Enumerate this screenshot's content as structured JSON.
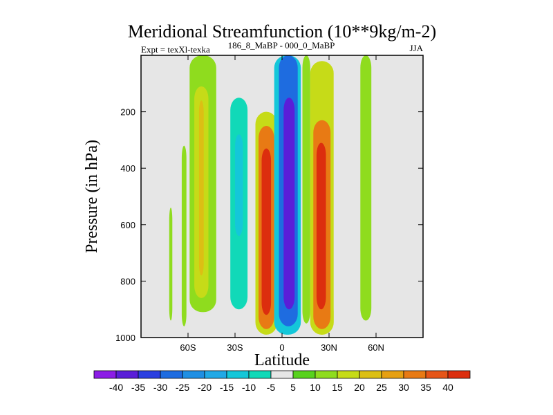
{
  "chart_data": {
    "type": "contour",
    "title": "Meridional Streamfunction (10**9kg/m-2)",
    "left_label": "Expt = texXl-texka",
    "center_label": "186_8_MaBP - 000_0_MaBP",
    "right_label": "JJA",
    "xlabel": "Latitude",
    "ylabel": "Pressure (in hPa)",
    "xlim": [
      -90,
      90
    ],
    "ylim": [
      1000,
      0
    ],
    "x_ticks": [
      {
        "value": -60,
        "label": "60S"
      },
      {
        "value": -30,
        "label": "30S"
      },
      {
        "value": 0,
        "label": "0"
      },
      {
        "value": 30,
        "label": "30N"
      },
      {
        "value": 60,
        "label": "60N"
      }
    ],
    "y_ticks": [
      {
        "value": 200,
        "label": "200"
      },
      {
        "value": 400,
        "label": "400"
      },
      {
        "value": 600,
        "label": "600"
      },
      {
        "value": 800,
        "label": "800"
      },
      {
        "value": 1000,
        "label": "1000"
      }
    ],
    "levels": [
      "-40",
      "-35",
      "-30",
      "-25",
      "-20",
      "-15",
      "-10",
      "-5",
      "5",
      "10",
      "15",
      "20",
      "25",
      "30",
      "35",
      "40"
    ],
    "colors": [
      "#8c1ce6",
      "#5a1ed8",
      "#2b3fe0",
      "#1e6ce0",
      "#1f8fe3",
      "#21a9e6",
      "#14c7d9",
      "#11d9b8",
      "#e6e6e6",
      "#58d21d",
      "#8fdc1e",
      "#c6db18",
      "#dcbf14",
      "#e6a012",
      "#e87a14",
      "#e65518",
      "#dc2e0e"
    ],
    "missing_color": "#e6e6e6",
    "features": [
      {
        "name": "band-60s-edge",
        "lat": [
          -72,
          -70
        ],
        "p": [
          540,
          940
        ],
        "level": 10
      },
      {
        "name": "band-60s-outer",
        "lat": [
          -64,
          -61
        ],
        "p": [
          320,
          960
        ],
        "level": 10
      },
      {
        "name": "band-45s",
        "lat": [
          -59,
          -42
        ],
        "p": [
          0,
          910
        ],
        "level": 10
      },
      {
        "name": "band-45s-core",
        "lat": [
          -56,
          -47
        ],
        "p": [
          110,
          860
        ],
        "level": 15
      },
      {
        "name": "band-45s-inner",
        "lat": [
          -53,
          -50
        ],
        "p": [
          160,
          780
        ],
        "level": 20
      },
      {
        "name": "cell-30s",
        "lat": [
          -38,
          -18
        ],
        "p": [
          0,
          960
        ],
        "level": -5
      },
      {
        "name": "cell-30s-core",
        "lat": [
          -33,
          -22
        ],
        "p": [
          150,
          900
        ],
        "level": -10
      },
      {
        "name": "cell-30s-inner",
        "lat": [
          -30,
          -25
        ],
        "p": [
          280,
          640
        ],
        "level": -15
      },
      {
        "name": "cell-15s",
        "lat": [
          -17,
          -3
        ],
        "p": [
          200,
          990
        ],
        "level": 15
      },
      {
        "name": "cell-15s-core",
        "lat": [
          -15,
          -5
        ],
        "p": [
          250,
          970
        ],
        "level": 30
      },
      {
        "name": "cell-15s-inner",
        "lat": [
          -13,
          -7
        ],
        "p": [
          330,
          920
        ],
        "level": 40
      },
      {
        "name": "cell-eq",
        "lat": [
          -5,
          12
        ],
        "p": [
          0,
          990
        ],
        "level": -15
      },
      {
        "name": "cell-eq-core",
        "lat": [
          -2,
          10
        ],
        "p": [
          0,
          960
        ],
        "level": -30
      },
      {
        "name": "cell-eq-inner",
        "lat": [
          1,
          8
        ],
        "p": [
          150,
          900
        ],
        "level": -40
      },
      {
        "name": "cell-20n",
        "lat": [
          13,
          18
        ],
        "p": [
          0,
          950
        ],
        "level": 10
      },
      {
        "name": "cell-25n",
        "lat": [
          18,
          33
        ],
        "p": [
          20,
          990
        ],
        "level": 15
      },
      {
        "name": "cell-25n-core",
        "lat": [
          20,
          31
        ],
        "p": [
          230,
          970
        ],
        "level": 30
      },
      {
        "name": "cell-25n-inner",
        "lat": [
          22,
          28
        ],
        "p": [
          310,
          900
        ],
        "level": 40
      },
      {
        "name": "cell-40n",
        "lat": [
          33,
          40
        ],
        "p": [
          0,
          940
        ],
        "level": -5
      },
      {
        "name": "band-50n",
        "lat": [
          50,
          57
        ],
        "p": [
          0,
          940
        ],
        "level": 10
      },
      {
        "name": "band-70n",
        "lat": [
          67,
          74
        ],
        "p": [
          230,
          940
        ],
        "level": -5
      }
    ]
  }
}
